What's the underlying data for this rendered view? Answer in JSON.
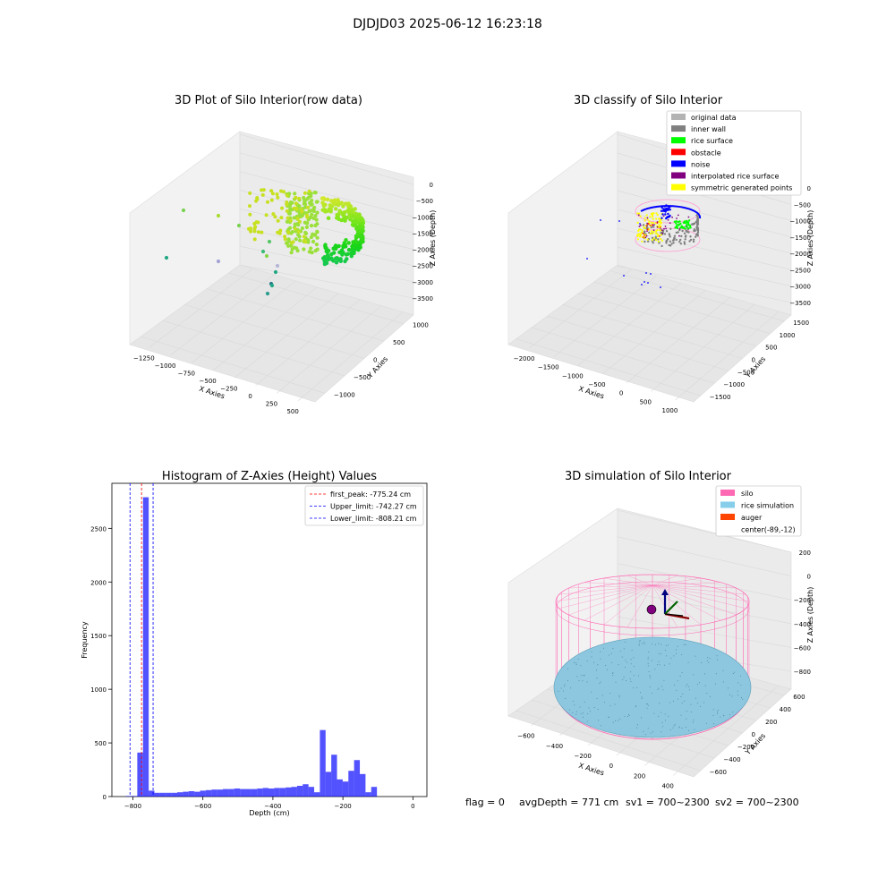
{
  "figure": {
    "suptitle": "DJDJD03 2025-06-12 16:23:18",
    "footer": {
      "flag": "flag = 0",
      "avg_depth": "avgDepth = 771 cm",
      "sv1": "sv1 = 700~2300",
      "sv2": "sv2 = 700~2300"
    }
  },
  "chart_data": [
    {
      "type": "scatter",
      "projection": "3d",
      "title": "3D Plot of Silo Interior(row data)",
      "xlabel": "X Axies",
      "ylabel": "Y Axies",
      "zlabel": "Z Axies (Depth)",
      "x_ticks": [
        "−1250",
        "−1000",
        "−750",
        "−500",
        "−250",
        "0",
        "250",
        "500"
      ],
      "y_ticks": [
        "−1000",
        "−500",
        "0",
        "500",
        "1000"
      ],
      "z_ticks": [
        "0",
        "−500",
        "−1000",
        "−1500",
        "−2000",
        "−2500",
        "−3000",
        "−3500"
      ],
      "grid": true,
      "colormap": "viridis",
      "description_points": "dense half-ring surface near X≈0..500 with scattered outliers"
    },
    {
      "type": "scatter",
      "projection": "3d",
      "title": "3D classify of Silo Interior",
      "xlabel": "X Axies",
      "ylabel": "Y Axies",
      "zlabel": "Z Axies (Depth)",
      "x_ticks": [
        "−2000",
        "−1500",
        "−1000",
        "−500",
        "0",
        "500",
        "1000"
      ],
      "y_ticks": [
        "−1500",
        "−1000",
        "−500",
        "0",
        "500",
        "1000",
        "1500"
      ],
      "z_ticks": [
        "0",
        "−500",
        "−1000",
        "−1500",
        "−2000",
        "−2500",
        "−3000",
        "−3500"
      ],
      "grid": true,
      "legend_position": "top-right",
      "legend": [
        {
          "label": "original data",
          "color": "#b3b3b3"
        },
        {
          "label": "inner wall",
          "color": "#808080"
        },
        {
          "label": "rice surface",
          "color": "#00ff00"
        },
        {
          "label": "obstacle",
          "color": "#ff0000"
        },
        {
          "label": "noise",
          "color": "#0000ff"
        },
        {
          "label": "interpolated rice surface",
          "color": "#800080"
        },
        {
          "label": "symmetric generated points",
          "color": "#ffff00"
        }
      ]
    },
    {
      "type": "bar",
      "title": "Histogram of Z-Axies (Height) Values",
      "xlabel": "Depth (cm)",
      "ylabel": "Frequency",
      "xlim": [
        -860,
        40
      ],
      "ylim": [
        0,
        2920
      ],
      "x_ticks": [
        -800,
        -600,
        -400,
        -200,
        0
      ],
      "y_ticks": [
        0,
        500,
        1000,
        1500,
        2000,
        2500
      ],
      "bar_color": "#0000ff",
      "bin_edges_start": -820,
      "bin_width": 16.3,
      "values": [
        5,
        5,
        410,
        2790,
        55,
        35,
        35,
        35,
        35,
        40,
        45,
        50,
        45,
        55,
        60,
        65,
        65,
        70,
        70,
        75,
        70,
        70,
        70,
        75,
        80,
        75,
        80,
        80,
        85,
        90,
        100,
        115,
        90,
        40,
        620,
        230,
        390,
        160,
        140,
        240,
        340,
        210,
        40,
        90
      ],
      "vlines": [
        {
          "label": "first_peak: -775.24 cm",
          "x": -775.24,
          "color": "#ff0000"
        },
        {
          "label": "Upper_limit: -742.27 cm",
          "x": -742.27,
          "color": "#0000ff"
        },
        {
          "label": "Lower_limit: -808.21 cm",
          "x": -808.21,
          "color": "#0000ff"
        }
      ],
      "legend_position": "top-right",
      "grid": false
    },
    {
      "type": "surface",
      "projection": "3d",
      "title": "3D simulation of Silo Interior",
      "xlabel": "X Axies",
      "ylabel": "Y Axies",
      "zlabel": "Z Axies (Depth)",
      "x_ticks": [
        "−600",
        "−400",
        "−200",
        "0",
        "200",
        "400"
      ],
      "y_ticks": [
        "−600",
        "−400",
        "−200",
        "0",
        "200",
        "400",
        "600"
      ],
      "z_ticks": [
        "200",
        "0",
        "−200",
        "−400",
        "−600",
        "−800"
      ],
      "grid": true,
      "legend_position": "top-right",
      "legend": [
        {
          "label": "silo",
          "color": "#ff69b4"
        },
        {
          "label": "rice simulation",
          "color": "#87ceeb"
        },
        {
          "label": "auger",
          "color": "#ff4500"
        },
        {
          "label": "center(-89,-12)",
          "color": ""
        }
      ]
    }
  ]
}
